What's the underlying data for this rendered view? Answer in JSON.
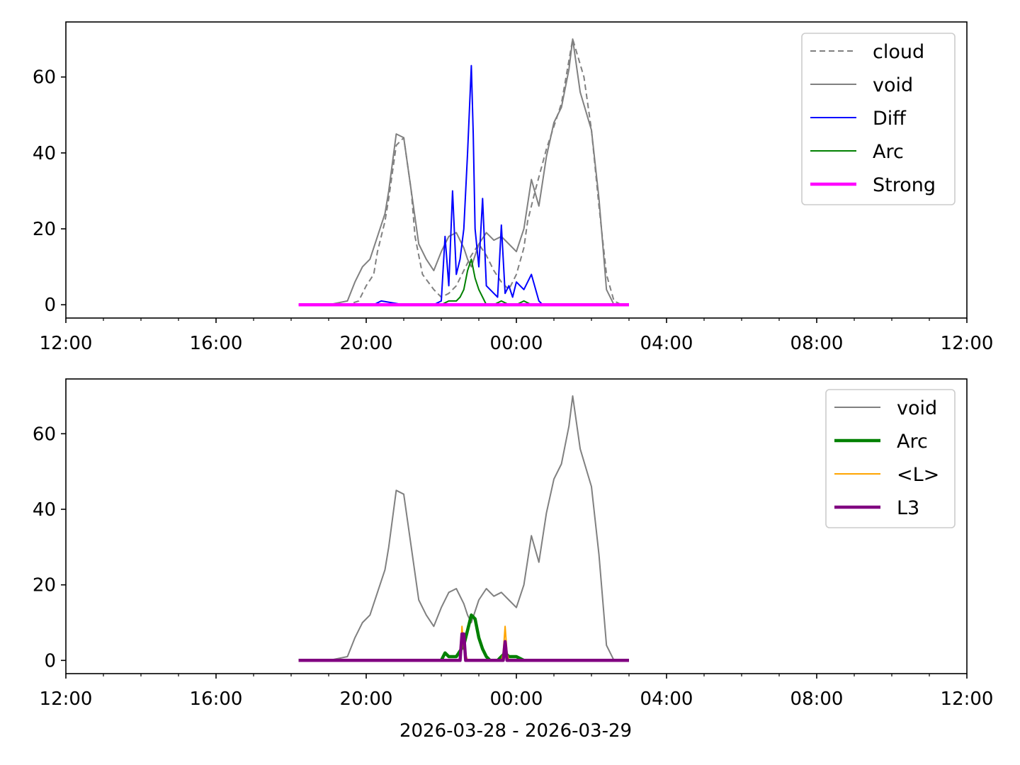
{
  "figure_xlabel": "2026-03-28 - 2026-03-29",
  "colors": {
    "cloud": "#808080",
    "void": "#808080",
    "Diff": "#0000ff",
    "Arc": "#008000",
    "Strong": "#ff00ff",
    "<L>": "#ffa500",
    "L3": "#800080"
  },
  "chart_data": [
    {
      "type": "line",
      "panel": "top",
      "title": "",
      "xlabel": "",
      "ylabel": "",
      "x_unit": "hour of day (2026-03-28 12:00 to 2026-03-29 12:00)",
      "xlim": [
        "12:00",
        "12:00"
      ],
      "xlim_hours": [
        12,
        36
      ],
      "ylim": [
        -3.5,
        74.5
      ],
      "xticks": [
        "12:00",
        "16:00",
        "20:00",
        "00:00",
        "04:00",
        "08:00",
        "12:00"
      ],
      "yticks": [
        "0",
        "20",
        "40",
        "60"
      ],
      "grid": false,
      "legend": "top-right",
      "series": [
        {
          "name": "cloud",
          "style": "dashed",
          "x": [
            18.2,
            19.0,
            19.5,
            19.8,
            20.0,
            20.2,
            20.3,
            20.5,
            20.6,
            20.8,
            21.0,
            21.2,
            21.3,
            21.5,
            21.8,
            22.0,
            22.2,
            22.4,
            22.6,
            22.8,
            23.0,
            23.2,
            23.4,
            23.6,
            23.8,
            24.0,
            24.2,
            24.3,
            24.5,
            24.8,
            25.0,
            25.2,
            25.5,
            25.8,
            26.0,
            26.2,
            26.4,
            26.6,
            26.8,
            27.0
          ],
          "y": [
            0,
            0,
            0,
            1,
            5,
            8,
            14,
            22,
            28,
            42,
            44,
            30,
            18,
            8,
            4,
            2,
            3,
            5,
            9,
            13,
            16,
            13,
            9,
            6,
            4,
            8,
            15,
            22,
            30,
            41,
            47,
            53,
            70,
            60,
            46,
            26,
            8,
            1,
            0,
            0
          ]
        },
        {
          "name": "void",
          "style": "solid",
          "x": [
            18.2,
            19.0,
            19.5,
            19.7,
            19.9,
            20.1,
            20.3,
            20.5,
            20.6,
            20.8,
            21.0,
            21.2,
            21.4,
            21.6,
            21.8,
            22.0,
            22.2,
            22.4,
            22.6,
            22.7,
            22.8,
            23.0,
            23.2,
            23.4,
            23.6,
            23.8,
            24.0,
            24.2,
            24.4,
            24.6,
            24.8,
            25.0,
            25.2,
            25.4,
            25.5,
            25.7,
            26.0,
            26.2,
            26.4,
            26.6,
            26.8,
            27.0
          ],
          "y": [
            0,
            0,
            1,
            6,
            10,
            12,
            18,
            24,
            30,
            45,
            44,
            30,
            16,
            12,
            9,
            14,
            18,
            19,
            15,
            12,
            10,
            16,
            19,
            17,
            18,
            16,
            14,
            20,
            33,
            26,
            39,
            48,
            52,
            62,
            70,
            56,
            46,
            28,
            4,
            0,
            0,
            0
          ]
        },
        {
          "name": "Diff",
          "style": "solid",
          "x": [
            20.2,
            20.4,
            21.0,
            21.8,
            22.0,
            22.1,
            22.2,
            22.3,
            22.4,
            22.5,
            22.6,
            22.7,
            22.8,
            22.85,
            22.9,
            23.0,
            23.1,
            23.2,
            23.3,
            23.4,
            23.5,
            23.6,
            23.7,
            23.8,
            23.9,
            24.0,
            24.2,
            24.4,
            24.6,
            24.7,
            25.0
          ],
          "y": [
            0,
            1,
            0,
            0,
            1,
            18,
            5,
            30,
            8,
            12,
            20,
            40,
            63,
            45,
            20,
            10,
            28,
            5,
            4,
            3,
            2,
            21,
            3,
            5,
            2,
            6,
            4,
            8,
            1,
            0,
            0
          ]
        },
        {
          "name": "Arc",
          "style": "solid",
          "x": [
            21.8,
            22.0,
            22.2,
            22.4,
            22.5,
            22.6,
            22.7,
            22.8,
            22.9,
            23.0,
            23.1,
            23.2,
            23.4,
            23.6,
            23.8,
            24.0,
            24.2,
            24.4,
            25.0
          ],
          "y": [
            0,
            0,
            1,
            1,
            2,
            4,
            9,
            12,
            7,
            4,
            2,
            0,
            0,
            1,
            0,
            0,
            1,
            0,
            0
          ]
        },
        {
          "name": "Strong",
          "style": "solid",
          "x": [
            18.2,
            27.0
          ],
          "y": [
            0,
            0
          ]
        }
      ]
    },
    {
      "type": "line",
      "panel": "bottom",
      "title": "",
      "xlabel": "2026-03-28 - 2026-03-29",
      "ylabel": "",
      "x_unit": "hour of day (2026-03-28 12:00 to 2026-03-29 12:00)",
      "xlim": [
        "12:00",
        "12:00"
      ],
      "xlim_hours": [
        12,
        36
      ],
      "ylim": [
        -3.5,
        74.5
      ],
      "xticks": [
        "12:00",
        "16:00",
        "20:00",
        "00:00",
        "04:00",
        "08:00",
        "12:00"
      ],
      "yticks": [
        "0",
        "20",
        "40",
        "60"
      ],
      "grid": false,
      "legend": "top-right",
      "series": [
        {
          "name": "void",
          "style": "solid",
          "x": [
            18.2,
            19.0,
            19.5,
            19.7,
            19.9,
            20.1,
            20.3,
            20.5,
            20.6,
            20.8,
            21.0,
            21.2,
            21.4,
            21.6,
            21.8,
            22.0,
            22.2,
            22.4,
            22.6,
            22.7,
            22.8,
            23.0,
            23.2,
            23.4,
            23.6,
            23.8,
            24.0,
            24.2,
            24.4,
            24.6,
            24.8,
            25.0,
            25.2,
            25.4,
            25.5,
            25.7,
            26.0,
            26.2,
            26.4,
            26.6,
            26.8,
            27.0
          ],
          "y": [
            0,
            0,
            1,
            6,
            10,
            12,
            18,
            24,
            30,
            45,
            44,
            30,
            16,
            12,
            9,
            14,
            18,
            19,
            15,
            12,
            10,
            16,
            19,
            17,
            18,
            16,
            14,
            20,
            33,
            26,
            39,
            48,
            52,
            62,
            70,
            56,
            46,
            28,
            4,
            0,
            0,
            0
          ]
        },
        {
          "name": "Arc",
          "style": "solid",
          "x": [
            18.2,
            22.0,
            22.1,
            22.2,
            22.4,
            22.6,
            22.7,
            22.8,
            22.9,
            23.0,
            23.1,
            23.2,
            23.3,
            23.5,
            23.6,
            23.7,
            23.8,
            23.9,
            24.0,
            24.2,
            24.4,
            27.0
          ],
          "y": [
            0,
            0,
            2,
            1,
            1,
            4,
            8,
            12,
            11,
            6,
            3,
            1,
            0,
            0,
            1,
            2,
            1,
            1,
            1,
            0,
            0,
            0
          ]
        },
        {
          "name": "<L>",
          "style": "solid",
          "x": [
            18.2,
            22.4,
            22.5,
            22.55,
            22.6,
            22.7,
            23.6,
            23.65,
            23.7,
            23.75,
            23.8,
            27.0
          ],
          "y": [
            0,
            0,
            0,
            9,
            3,
            0,
            0,
            2,
            9,
            2,
            0,
            0
          ]
        },
        {
          "name": "L3",
          "style": "solid",
          "x": [
            18.2,
            22.45,
            22.5,
            22.55,
            22.6,
            22.65,
            23.6,
            23.65,
            23.7,
            23.75,
            23.8,
            27.0
          ],
          "y": [
            0,
            0,
            0,
            7,
            7,
            0,
            0,
            0,
            5,
            0,
            0,
            0
          ]
        }
      ]
    }
  ]
}
